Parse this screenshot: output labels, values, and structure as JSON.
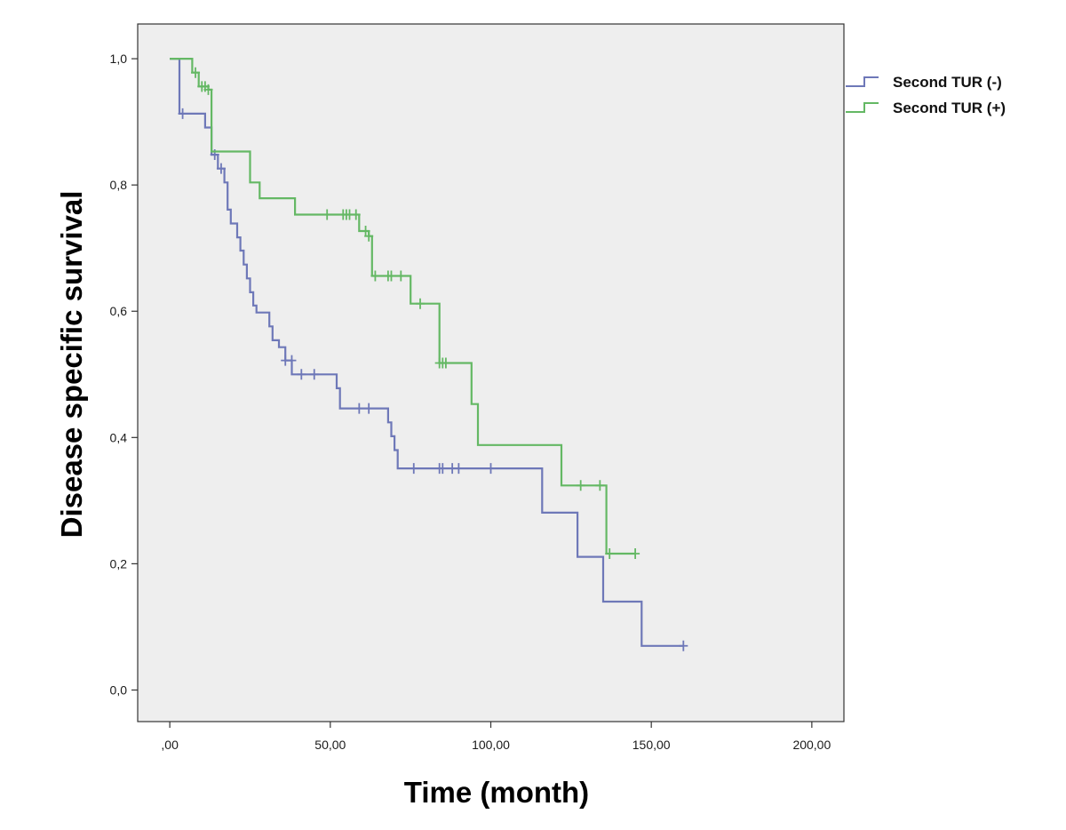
{
  "chart_data": {
    "type": "line",
    "title": "",
    "xlabel": "Time (month)",
    "ylabel": "Disease specific survival",
    "xlim": [
      -10,
      210
    ],
    "ylim": [
      -0.05,
      1.055
    ],
    "x_ticks": [
      {
        "value": 0,
        "label": ",00"
      },
      {
        "value": 50,
        "label": "50,00"
      },
      {
        "value": 100,
        "label": "100,00"
      },
      {
        "value": 150,
        "label": "150,00"
      },
      {
        "value": 200,
        "label": "200,00"
      }
    ],
    "y_ticks": [
      {
        "value": 0,
        "label": "0,0"
      },
      {
        "value": 0.2,
        "label": "0,2"
      },
      {
        "value": 0.4,
        "label": "0,4"
      },
      {
        "value": 0.6,
        "label": "0,6"
      },
      {
        "value": 0.8,
        "label": "0,8"
      },
      {
        "value": 1.0,
        "label": "1,0"
      }
    ],
    "grid": false,
    "legend": "top-right",
    "plot_background": "#eeeeee",
    "series": [
      {
        "name": "Second TUR (-)",
        "color": "#6e78b8",
        "step_points": [
          [
            0,
            1.0
          ],
          [
            3,
            1.0
          ],
          [
            3,
            0.913
          ],
          [
            11,
            0.913
          ],
          [
            11,
            0.891
          ],
          [
            13,
            0.891
          ],
          [
            13,
            0.848
          ],
          [
            15,
            0.848
          ],
          [
            15,
            0.826
          ],
          [
            17,
            0.826
          ],
          [
            17,
            0.804
          ],
          [
            18,
            0.804
          ],
          [
            18,
            0.761
          ],
          [
            19,
            0.761
          ],
          [
            19,
            0.739
          ],
          [
            21,
            0.739
          ],
          [
            21,
            0.717
          ],
          [
            22,
            0.717
          ],
          [
            22,
            0.696
          ],
          [
            23,
            0.696
          ],
          [
            23,
            0.674
          ],
          [
            24,
            0.674
          ],
          [
            24,
            0.652
          ],
          [
            25,
            0.652
          ],
          [
            25,
            0.63
          ],
          [
            26,
            0.63
          ],
          [
            26,
            0.609
          ],
          [
            27,
            0.609
          ],
          [
            27,
            0.598
          ],
          [
            31,
            0.598
          ],
          [
            31,
            0.576
          ],
          [
            32,
            0.576
          ],
          [
            32,
            0.554
          ],
          [
            34,
            0.554
          ],
          [
            34,
            0.543
          ],
          [
            36,
            0.543
          ],
          [
            36,
            0.522
          ],
          [
            38,
            0.522
          ],
          [
            38,
            0.5
          ],
          [
            52,
            0.5
          ],
          [
            52,
            0.478
          ],
          [
            53,
            0.478
          ],
          [
            53,
            0.446
          ],
          [
            68,
            0.446
          ],
          [
            68,
            0.424
          ],
          [
            69,
            0.424
          ],
          [
            69,
            0.402
          ],
          [
            70,
            0.402
          ],
          [
            70,
            0.38
          ],
          [
            71,
            0.38
          ],
          [
            71,
            0.351
          ],
          [
            116,
            0.351
          ],
          [
            116,
            0.281
          ],
          [
            127,
            0.281
          ],
          [
            127,
            0.211
          ],
          [
            135,
            0.211
          ],
          [
            135,
            0.14
          ],
          [
            147,
            0.14
          ],
          [
            147,
            0.07
          ],
          [
            160,
            0.07
          ]
        ],
        "censored": [
          [
            4,
            0.913
          ],
          [
            14,
            0.848
          ],
          [
            16,
            0.826
          ],
          [
            36,
            0.522
          ],
          [
            38,
            0.522
          ],
          [
            41,
            0.5
          ],
          [
            45,
            0.5
          ],
          [
            59,
            0.446
          ],
          [
            62,
            0.446
          ],
          [
            76,
            0.351
          ],
          [
            84,
            0.351
          ],
          [
            85,
            0.351
          ],
          [
            88,
            0.351
          ],
          [
            90,
            0.351
          ],
          [
            100,
            0.351
          ],
          [
            160,
            0.07
          ]
        ]
      },
      {
        "name": "Second TUR (+)",
        "color": "#64b864",
        "step_points": [
          [
            0,
            1.0
          ],
          [
            7,
            1.0
          ],
          [
            7,
            0.978
          ],
          [
            9,
            0.978
          ],
          [
            9,
            0.956
          ],
          [
            12,
            0.956
          ],
          [
            12,
            0.951
          ],
          [
            13,
            0.951
          ],
          [
            13,
            0.853
          ],
          [
            25,
            0.853
          ],
          [
            25,
            0.804
          ],
          [
            28,
            0.804
          ],
          [
            28,
            0.779
          ],
          [
            39,
            0.779
          ],
          [
            39,
            0.753
          ],
          [
            59,
            0.753
          ],
          [
            59,
            0.727
          ],
          [
            62,
            0.727
          ],
          [
            62,
            0.719
          ],
          [
            63,
            0.719
          ],
          [
            63,
            0.656
          ],
          [
            75,
            0.656
          ],
          [
            75,
            0.612
          ],
          [
            84,
            0.612
          ],
          [
            84,
            0.518
          ],
          [
            94,
            0.518
          ],
          [
            94,
            0.453
          ],
          [
            96,
            0.453
          ],
          [
            96,
            0.388
          ],
          [
            122,
            0.388
          ],
          [
            122,
            0.324
          ],
          [
            136,
            0.324
          ],
          [
            136,
            0.216
          ],
          [
            145,
            0.216
          ]
        ],
        "censored": [
          [
            8,
            0.978
          ],
          [
            10,
            0.956
          ],
          [
            11,
            0.956
          ],
          [
            12,
            0.951
          ],
          [
            49,
            0.753
          ],
          [
            54,
            0.753
          ],
          [
            55,
            0.753
          ],
          [
            56,
            0.753
          ],
          [
            58,
            0.753
          ],
          [
            61,
            0.727
          ],
          [
            62,
            0.719
          ],
          [
            64,
            0.656
          ],
          [
            68,
            0.656
          ],
          [
            69,
            0.656
          ],
          [
            72,
            0.656
          ],
          [
            78,
            0.612
          ],
          [
            84,
            0.518
          ],
          [
            85,
            0.518
          ],
          [
            86,
            0.518
          ],
          [
            128,
            0.324
          ],
          [
            134,
            0.324
          ],
          [
            137,
            0.216
          ],
          [
            145,
            0.216
          ]
        ]
      }
    ]
  }
}
